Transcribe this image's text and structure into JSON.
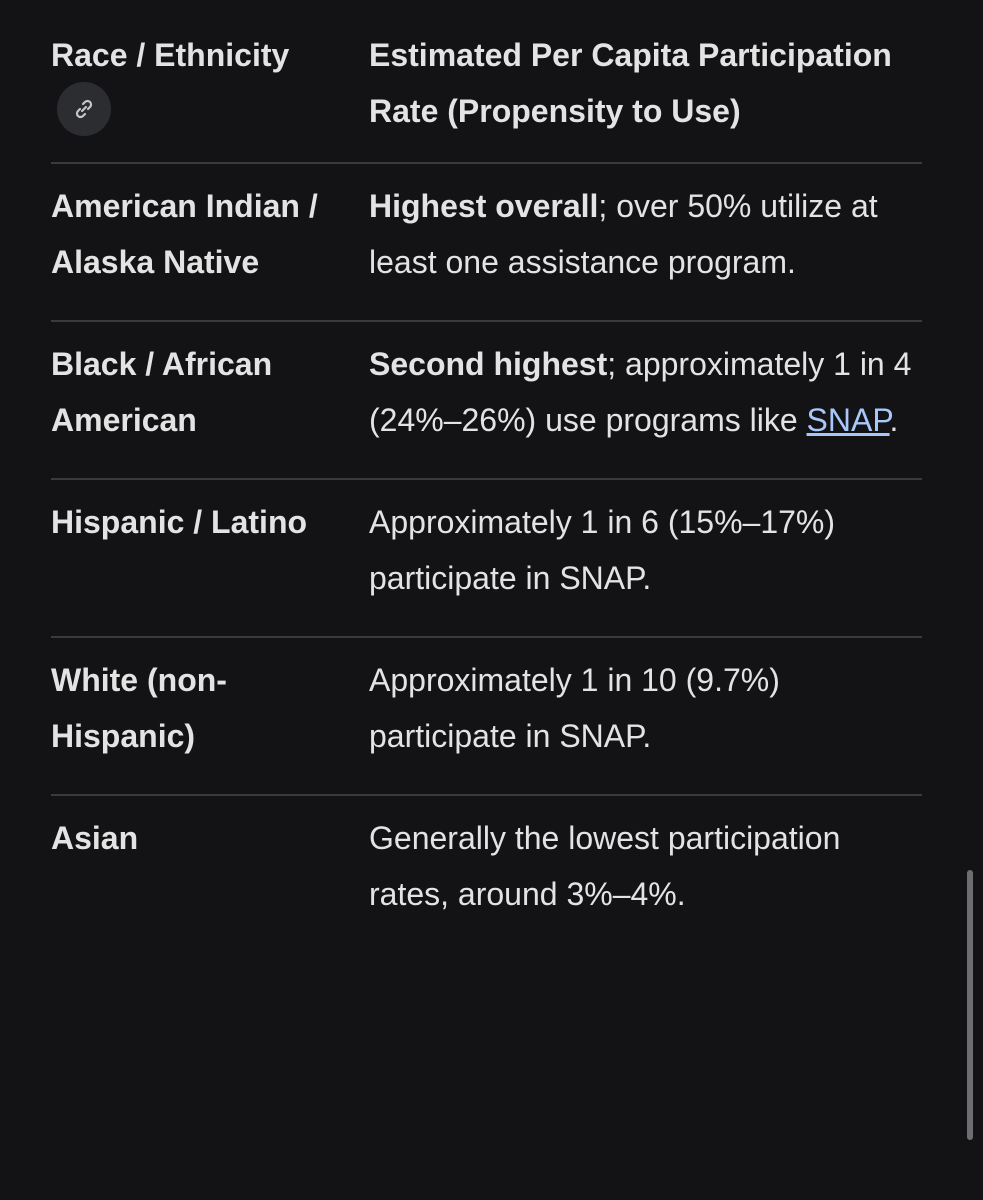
{
  "table": {
    "header": [
      "Race / Ethnicity",
      "Estimated Per Capita Participation Rate (Propensity to Use)"
    ],
    "rows": [
      {
        "group": "American Indian / Alaska Native",
        "rate": [
          {
            "text": "Highest overall",
            "style": "bold"
          },
          {
            "text": "; over 50% utilize at least one assistance program."
          }
        ]
      },
      {
        "group": "Black / African American",
        "rate": [
          {
            "text": "Second highest",
            "style": "bold"
          },
          {
            "text": "; approximately 1 in 4 (24%–26%) use programs like "
          },
          {
            "text": "SNAP",
            "style": "link"
          },
          {
            "text": "."
          }
        ]
      },
      {
        "group": "Hispanic / Latino",
        "rate": [
          {
            "text": "Approximately 1 in 6 (15%–17%) participate in SNAP."
          }
        ]
      },
      {
        "group": "White (non-Hispanic)",
        "rate": [
          {
            "text": "Approximately 1 in 10 (9.7%) participate in SNAP."
          }
        ]
      },
      {
        "group": "Asian",
        "rate": [
          {
            "text": "Generally the lowest participation rates, around 3%–4%."
          }
        ]
      }
    ]
  }
}
